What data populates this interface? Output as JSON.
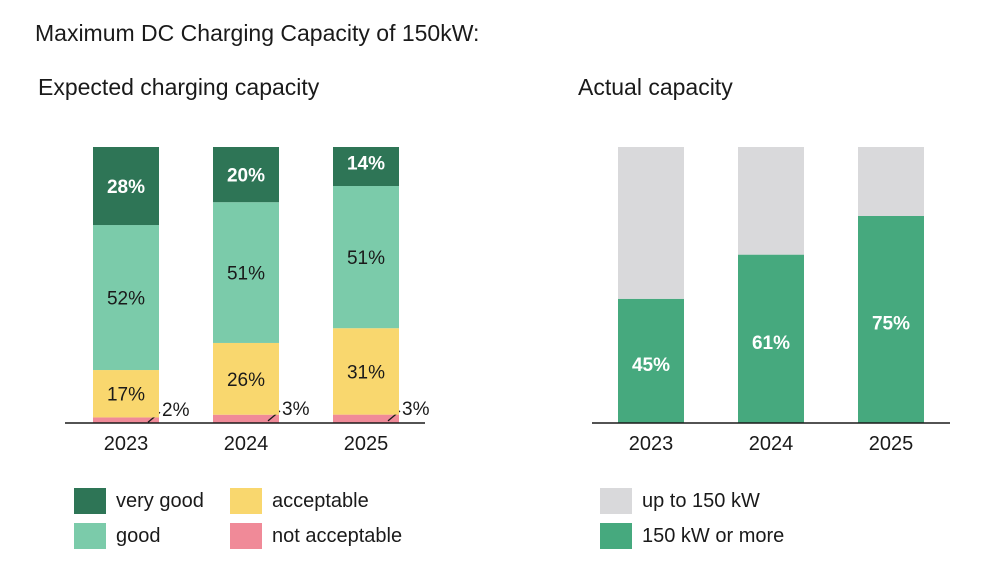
{
  "title": "Maximum DC Charging Capacity of 150kW:",
  "chart_data": [
    {
      "type": "bar",
      "stacked": true,
      "title": "Expected charging capacity",
      "categories": [
        "2023",
        "2024",
        "2025"
      ],
      "series": [
        {
          "name": "not acceptable",
          "color": "#F08A98",
          "values": [
            2,
            3,
            3
          ],
          "labels": [
            "2%",
            "3%",
            "3%"
          ]
        },
        {
          "name": "acceptable",
          "color": "#F9D76E",
          "values": [
            17,
            26,
            31
          ],
          "labels": [
            "17%",
            "26%",
            "31%"
          ]
        },
        {
          "name": "good",
          "color": "#7BCBAA",
          "values": [
            52,
            51,
            51
          ],
          "labels": [
            "52%",
            "51%",
            "51%"
          ]
        },
        {
          "name": "very good",
          "color": "#2E7556",
          "values": [
            28,
            20,
            14
          ],
          "labels": [
            "28%",
            "20%",
            "14%"
          ]
        }
      ],
      "ylim": [
        0,
        100
      ]
    },
    {
      "type": "bar",
      "stacked": true,
      "title": "Actual capacity",
      "categories": [
        "2023",
        "2024",
        "2025"
      ],
      "series": [
        {
          "name": "150 kW or more",
          "color": "#46A97E",
          "values": [
            45,
            61,
            75
          ],
          "labels": [
            "45%",
            "61%",
            "75%"
          ]
        },
        {
          "name": "up to 150 kW",
          "color": "#D9D9DB",
          "values": [
            55,
            39,
            25
          ],
          "labels": [
            "",
            "",
            ""
          ]
        }
      ],
      "ylim": [
        0,
        100
      ]
    }
  ],
  "legend_left": [
    {
      "label": "very good",
      "color": "#2E7556"
    },
    {
      "label": "acceptable",
      "color": "#F9D76E"
    },
    {
      "label": "good",
      "color": "#7BCBAA"
    },
    {
      "label": "not acceptable",
      "color": "#F08A98"
    }
  ],
  "legend_right": [
    {
      "label": "up to 150 kW",
      "color": "#D9D9DB"
    },
    {
      "label": "150 kW or more",
      "color": "#46A97E"
    }
  ]
}
